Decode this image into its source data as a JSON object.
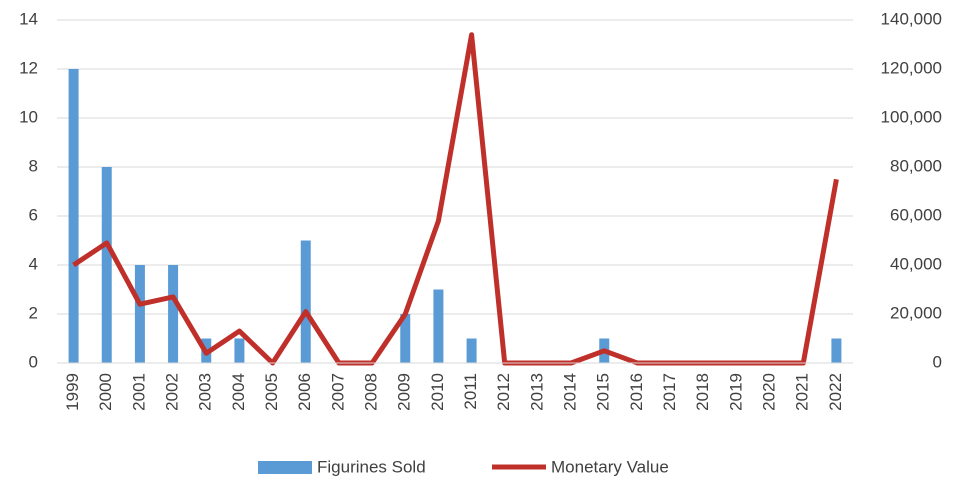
{
  "chart_data": {
    "type": "bar_line",
    "categories": [
      "1999",
      "2000",
      "2001",
      "2002",
      "2003",
      "2004",
      "2005",
      "2006",
      "2007",
      "2008",
      "2009",
      "2010",
      "2011",
      "2012",
      "2013",
      "2014",
      "2015",
      "2016",
      "2017",
      "2018",
      "2019",
      "2020",
      "2021",
      "2022"
    ],
    "series": [
      {
        "name": "Figurines Sold",
        "color": "#5b9bd5",
        "type": "bar",
        "axis": "y",
        "values": [
          12,
          8,
          4,
          4,
          1,
          1,
          0,
          5,
          0,
          0,
          2,
          3,
          1,
          0,
          0,
          0,
          1,
          0,
          0,
          0,
          0,
          0,
          0,
          1
        ]
      },
      {
        "name": "Monetary Value",
        "color": "#c0302a",
        "type": "line",
        "axis": "y2",
        "values": [
          40000,
          49000,
          24000,
          27000,
          4000,
          13000,
          0,
          21000,
          0,
          0,
          20000,
          58000,
          134000,
          0,
          0,
          0,
          5000,
          0,
          0,
          0,
          0,
          0,
          0,
          75000
        ]
      }
    ],
    "ylim": [
      0,
      14
    ],
    "yticks": [
      0,
      2,
      4,
      6,
      8,
      10,
      12,
      14
    ],
    "y2lim": [
      0,
      140000
    ],
    "y2ticks": [
      {
        "value": 0,
        "label": "0"
      },
      {
        "value": 20000,
        "label": "20,000"
      },
      {
        "value": 40000,
        "label": "40,000"
      },
      {
        "value": 60000,
        "label": "60,000"
      },
      {
        "value": 80000,
        "label": "80,000"
      },
      {
        "value": 100000,
        "label": "100,000"
      },
      {
        "value": 120000,
        "label": "120,000"
      },
      {
        "value": 140000,
        "label": "140,000"
      }
    ],
    "grid": true,
    "legend": "bottom"
  }
}
